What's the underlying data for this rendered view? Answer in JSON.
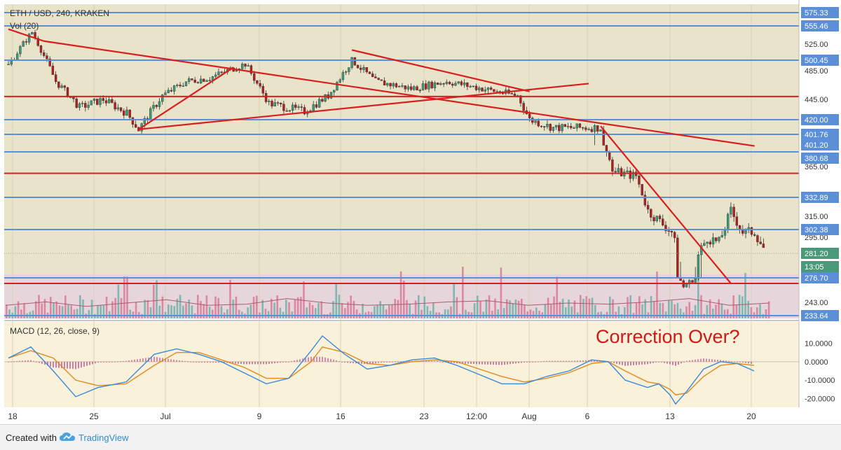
{
  "header": {
    "symbol": "ETH / USD, 240, KRAKEN",
    "volume_label": "Vol (20)"
  },
  "macd": {
    "label": "MACD (12, 26, close, 9)"
  },
  "annotation": "Correction Over?",
  "footer": {
    "created_with": "Created with",
    "brand": "TradingView"
  },
  "colors": {
    "up_candle": "#3a9a7a",
    "down_candle": "#b02020",
    "price_bg": "#e9e3c9",
    "volume_bg": "#e6d5da",
    "macd_bg": "#f9f1d9",
    "h_line_blue": "#5b8fd8",
    "trend_red": "#d81f1f",
    "macd_line": "#3a8ad8",
    "signal_line": "#e08a20",
    "hist_positive": "#d070a0",
    "vol_up": "#70b0a8",
    "vol_down": "#d87a98"
  },
  "chart_data": [
    {
      "type": "candlestick",
      "title": "ETH / USD, 240, KRAKEN",
      "y_axis_side": "right",
      "x_tick_labels": [
        "18",
        "25",
        "Jul",
        "9",
        "16",
        "23",
        "12:00",
        "Aug",
        "6",
        "13",
        "20"
      ],
      "y_tick_labels": [
        "525.00",
        "485.00",
        "445.00",
        "365.00",
        "315.00",
        "295.00",
        "243.00"
      ],
      "price_level_labels": [
        "575.33",
        "555.46",
        "500.45",
        "420.00",
        "401.76",
        "401.20",
        "380.68",
        "332.89",
        "302.38",
        "281.20",
        "13:05",
        "276.70",
        "233.64"
      ],
      "current_price": 281.2,
      "countdown": "13:05",
      "horizontal_levels_blue": [
        575.33,
        555.46,
        500.45,
        420.0,
        401.76,
        380.68,
        332.89,
        302.38,
        276.7,
        233.64
      ],
      "horizontal_levels_red": [
        449,
        358,
        264
      ],
      "trendlines": [
        {
          "from": [
            "Jun 18",
            550
          ],
          "to": [
            "Jun 21",
            530
          ]
        },
        {
          "from": [
            "Jun 21",
            530
          ],
          "to": [
            "Aug 20",
            398
          ]
        },
        {
          "from": [
            "Jun 29",
            408
          ],
          "to": [
            "Jul 7",
            490
          ]
        },
        {
          "from": [
            "Jun 29",
            408
          ],
          "to": [
            "Aug 6",
            467
          ]
        },
        {
          "from": [
            "Jul 17",
            516
          ],
          "to": [
            "Aug 1",
            456
          ]
        },
        {
          "from": [
            "Aug 7",
            412
          ],
          "to": [
            "Aug 18",
            264
          ]
        }
      ],
      "approx_close_path": [
        [
          "Jun 18",
          493
        ],
        [
          "Jun 20",
          545
        ],
        [
          "Jun 22",
          470
        ],
        [
          "Jun 24",
          435
        ],
        [
          "Jun 26",
          445
        ],
        [
          "Jun 28",
          428
        ],
        [
          "Jun 29",
          408
        ],
        [
          "Jul 1",
          450
        ],
        [
          "Jul 3",
          470
        ],
        [
          "Jul 5",
          475
        ],
        [
          "Jul 8",
          495
        ],
        [
          "Jul 10",
          440
        ],
        [
          "Jul 13",
          430
        ],
        [
          "Jul 15",
          450
        ],
        [
          "Jul 17",
          500
        ],
        [
          "Jul 19",
          470
        ],
        [
          "Jul 22",
          460
        ],
        [
          "Jul 25",
          470
        ],
        [
          "Jul 28",
          460
        ],
        [
          "Jul 31",
          450
        ],
        [
          "Aug 1",
          420
        ],
        [
          "Aug 3",
          410
        ],
        [
          "Aug 6",
          410
        ],
        [
          "Aug 7",
          410
        ],
        [
          "Aug 8",
          360
        ],
        [
          "Aug 10",
          355
        ],
        [
          "Aug 11",
          320
        ],
        [
          "Aug 13",
          300
        ],
        [
          "Aug 14",
          260
        ],
        [
          "Aug 15",
          275
        ],
        [
          "Aug 16",
          295
        ],
        [
          "Aug 17",
          290
        ],
        [
          "Aug 18",
          320
        ],
        [
          "Aug 19",
          300
        ],
        [
          "Aug 20",
          300
        ],
        [
          "Aug 21",
          281
        ]
      ]
    },
    {
      "type": "bar",
      "title": "Vol (20)",
      "series": [
        {
          "values": [
            3,
            6,
            2,
            5,
            8,
            3,
            4,
            9,
            5,
            3,
            4,
            6,
            7,
            3,
            5,
            4,
            6,
            9,
            3,
            5
          ]
        }
      ]
    },
    {
      "type": "line",
      "title": "MACD (12, 26, close, 9)",
      "y_tick_labels": [
        "10.0000",
        "0.0000",
        "-10.0000",
        "-20.0000"
      ],
      "ylim": [
        -24,
        14
      ],
      "series": [
        {
          "values": [
            [
              0,
              2
            ],
            [
              4,
              8
            ],
            [
              8,
              -5
            ],
            [
              12,
              -19
            ],
            [
              16,
              -14
            ],
            [
              21,
              -11
            ],
            [
              26,
              4
            ],
            [
              30,
              7
            ],
            [
              34,
              4
            ],
            [
              38,
              0
            ],
            [
              42,
              -6
            ],
            [
              46,
              -12
            ],
            [
              50,
              -9
            ],
            [
              54,
              6
            ],
            [
              56,
              14
            ],
            [
              60,
              4
            ],
            [
              64,
              -4
            ],
            [
              68,
              -2
            ],
            [
              72,
              1
            ],
            [
              76,
              2
            ],
            [
              80,
              -2
            ],
            [
              84,
              -7
            ],
            [
              88,
              -12
            ],
            [
              92,
              -12
            ],
            [
              96,
              -8
            ],
            [
              100,
              -5
            ],
            [
              104,
              1
            ],
            [
              107,
              0
            ],
            [
              110,
              -10
            ],
            [
              114,
              -14
            ],
            [
              116,
              -12
            ],
            [
              118,
              -18
            ],
            [
              119,
              -23
            ],
            [
              121,
              -16
            ],
            [
              124,
              -4
            ],
            [
              127,
              0
            ],
            [
              130,
              -1
            ],
            [
              133,
              -5
            ]
          ]
        },
        {
          "values": [
            [
              0,
              2
            ],
            [
              4,
              6
            ],
            [
              8,
              2
            ],
            [
              12,
              -10
            ],
            [
              16,
              -13
            ],
            [
              21,
              -12
            ],
            [
              26,
              -2
            ],
            [
              30,
              5
            ],
            [
              34,
              5
            ],
            [
              38,
              1
            ],
            [
              42,
              -3
            ],
            [
              46,
              -9
            ],
            [
              50,
              -9
            ],
            [
              54,
              0
            ],
            [
              56,
              8
            ],
            [
              60,
              5
            ],
            [
              64,
              -1
            ],
            [
              68,
              -2
            ],
            [
              72,
              0
            ],
            [
              76,
              1
            ],
            [
              80,
              0
            ],
            [
              84,
              -4
            ],
            [
              88,
              -8
            ],
            [
              92,
              -11
            ],
            [
              96,
              -9
            ],
            [
              100,
              -6
            ],
            [
              104,
              -1
            ],
            [
              107,
              0
            ],
            [
              110,
              -5
            ],
            [
              114,
              -11
            ],
            [
              116,
              -12
            ],
            [
              118,
              -15
            ],
            [
              119,
              -18
            ],
            [
              121,
              -17
            ],
            [
              124,
              -8
            ],
            [
              127,
              -2
            ],
            [
              130,
              -1
            ],
            [
              133,
              -2
            ]
          ]
        }
      ]
    }
  ]
}
